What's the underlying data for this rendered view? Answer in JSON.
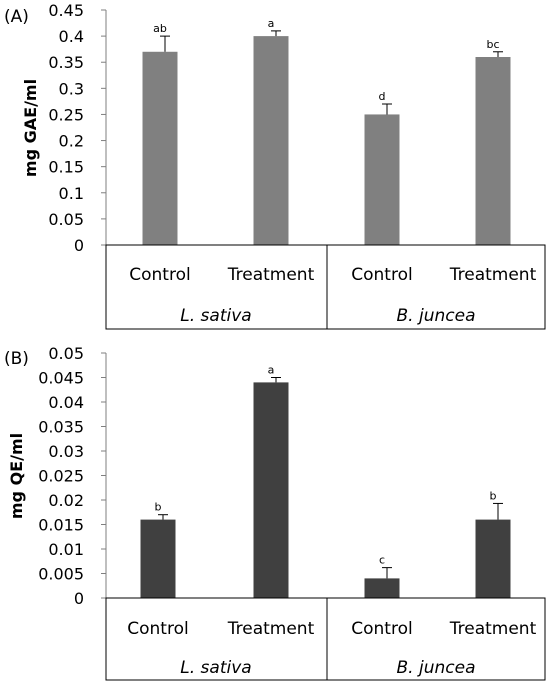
{
  "chart_data": [
    {
      "type": "bar",
      "panel_label": "(A)",
      "ylabel": "mg GAE/ml",
      "ylim": [
        0,
        0.45
      ],
      "yticks": [
        "0",
        "0.05",
        "0.1",
        "0.15",
        "0.2",
        "0.25",
        "0.3",
        "0.35",
        "0.4",
        "0.45"
      ],
      "categories": [
        "Control",
        "Treatment",
        "Control",
        "Treatment"
      ],
      "groups": [
        "L. sativa",
        "B. juncea"
      ],
      "values": [
        0.37,
        0.4,
        0.25,
        0.36
      ],
      "errors": [
        0.03,
        0.01,
        0.02,
        0.01
      ],
      "significance": [
        "ab",
        "a",
        "d",
        "bc"
      ],
      "bar_color": "#808080",
      "grid": false
    },
    {
      "type": "bar",
      "panel_label": "(B)",
      "ylabel": "mg QE/ml",
      "ylim": [
        0,
        0.05
      ],
      "yticks": [
        "0",
        "0.005",
        "0.01",
        "0.015",
        "0.02",
        "0.025",
        "0.03",
        "0.035",
        "0.04",
        "0.045",
        "0.05"
      ],
      "categories": [
        "Control",
        "Treatment",
        "Control",
        "Treatment"
      ],
      "groups": [
        "L. sativa",
        "B. juncea"
      ],
      "values": [
        0.016,
        0.044,
        0.004,
        0.016
      ],
      "errors": [
        0.001,
        0.001,
        0.0022,
        0.0033
      ],
      "significance": [
        "b",
        "a",
        "c",
        "b"
      ],
      "bar_color": "#404040",
      "grid": false
    }
  ]
}
